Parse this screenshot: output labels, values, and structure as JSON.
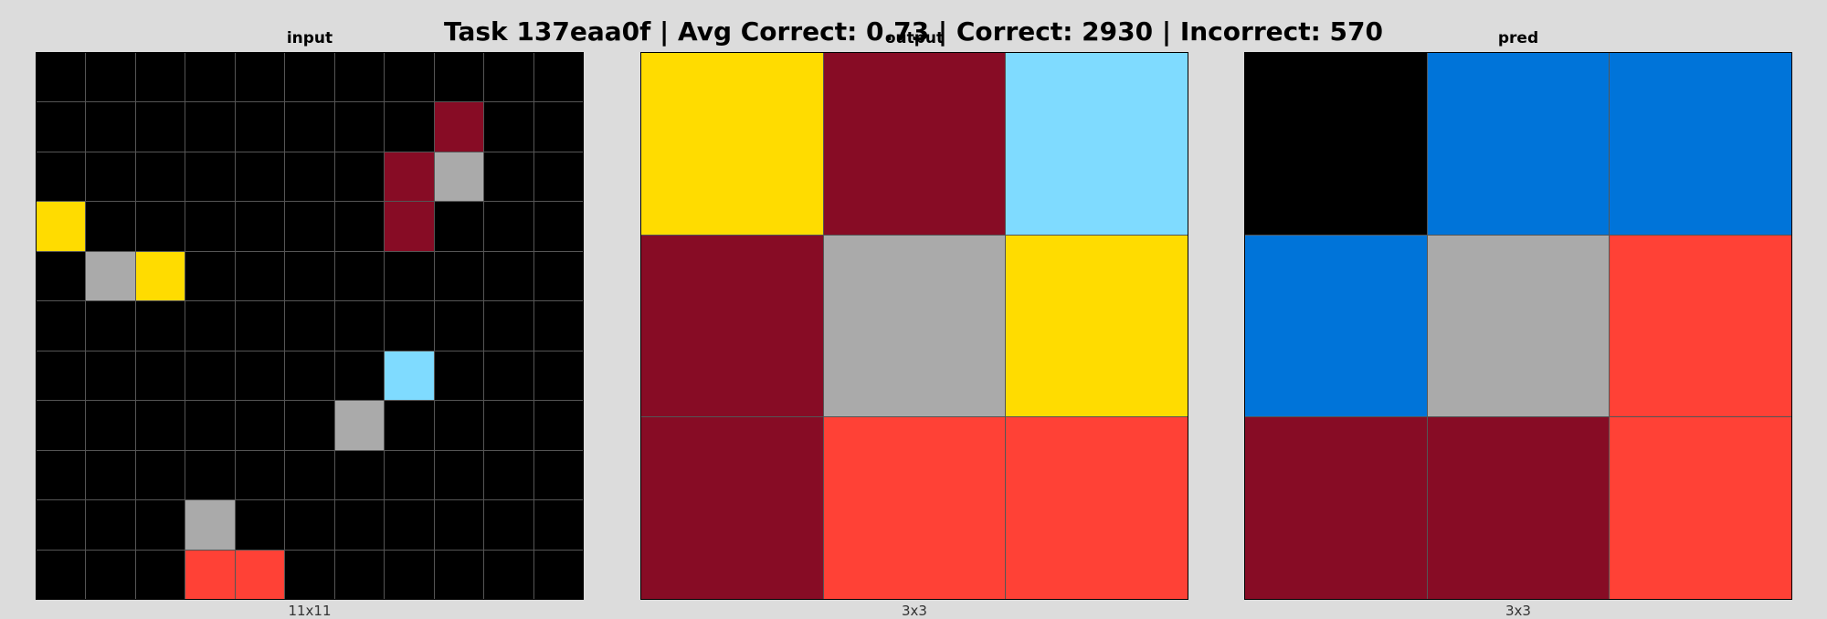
{
  "title": "Task 137eaa0f | Avg Correct: 0.73 | Correct: 2930 | Incorrect: 570",
  "colors": {
    "0": "#000000",
    "1": "#0074d9",
    "2": "#ff4136",
    "4": "#ffdc00",
    "5": "#aaaaaa",
    "8": "#7fdbff",
    "9": "#870c25"
  },
  "panels": [
    {
      "label": "input",
      "caption": "11x11",
      "grid": [
        [
          0,
          0,
          0,
          0,
          0,
          0,
          0,
          0,
          0,
          0,
          0
        ],
        [
          0,
          0,
          0,
          0,
          0,
          0,
          0,
          0,
          9,
          0,
          0
        ],
        [
          0,
          0,
          0,
          0,
          0,
          0,
          0,
          9,
          5,
          0,
          0
        ],
        [
          4,
          0,
          0,
          0,
          0,
          0,
          0,
          9,
          0,
          0,
          0
        ],
        [
          0,
          5,
          4,
          0,
          0,
          0,
          0,
          0,
          0,
          0,
          0
        ],
        [
          0,
          0,
          0,
          0,
          0,
          0,
          0,
          0,
          0,
          0,
          0
        ],
        [
          0,
          0,
          0,
          0,
          0,
          0,
          0,
          8,
          0,
          0,
          0
        ],
        [
          0,
          0,
          0,
          0,
          0,
          0,
          5,
          0,
          0,
          0,
          0
        ],
        [
          0,
          0,
          0,
          0,
          0,
          0,
          0,
          0,
          0,
          0,
          0
        ],
        [
          0,
          0,
          0,
          5,
          0,
          0,
          0,
          0,
          0,
          0,
          0
        ],
        [
          0,
          0,
          0,
          2,
          2,
          0,
          0,
          0,
          0,
          0,
          0
        ]
      ]
    },
    {
      "label": "output",
      "caption": "3x3",
      "grid": [
        [
          4,
          9,
          8
        ],
        [
          9,
          5,
          4
        ],
        [
          9,
          2,
          2
        ]
      ]
    },
    {
      "label": "pred",
      "caption": "3x3",
      "grid": [
        [
          0,
          1,
          1
        ],
        [
          1,
          5,
          2
        ],
        [
          9,
          9,
          2
        ]
      ]
    }
  ]
}
